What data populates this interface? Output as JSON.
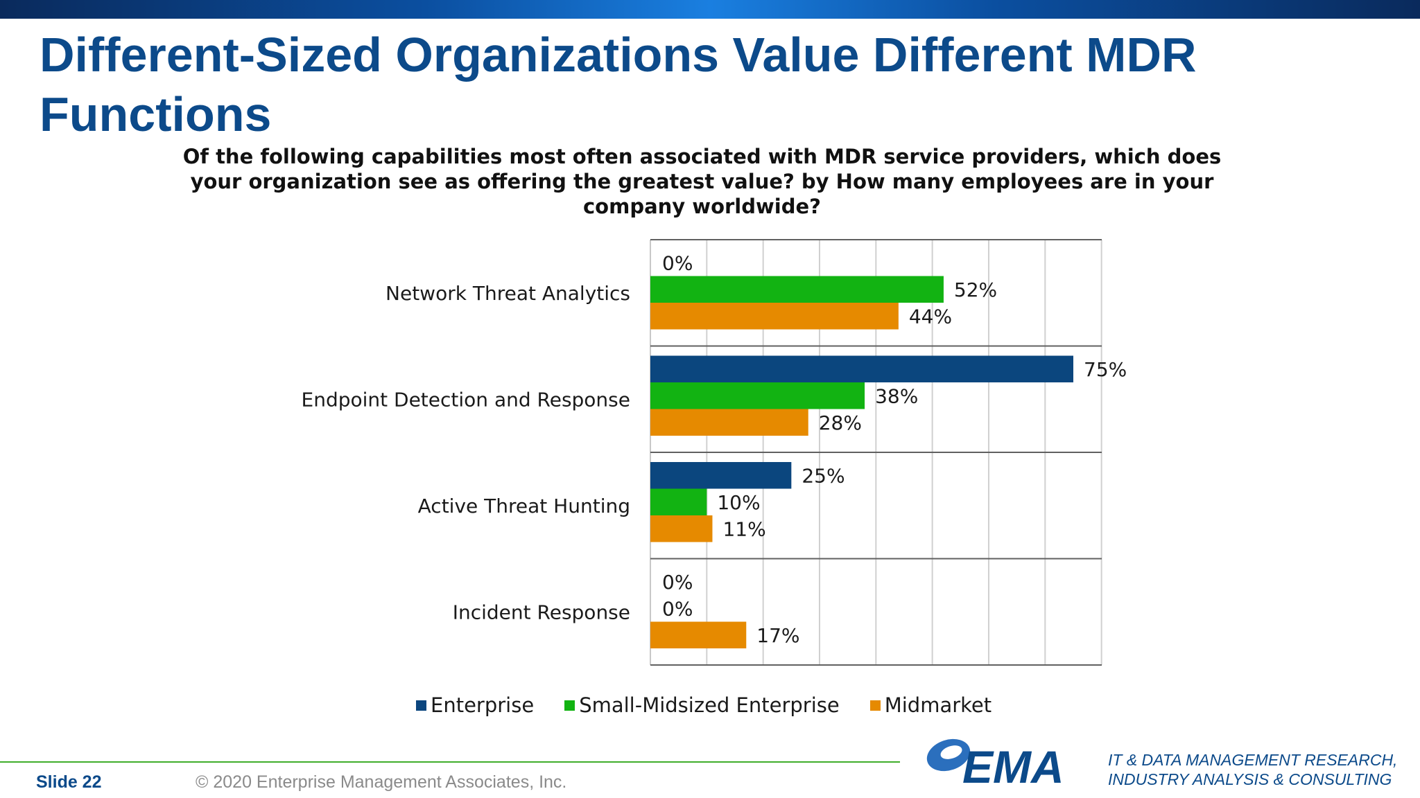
{
  "slide": {
    "title": "Different-Sized Organizations Value Different MDR Functions",
    "slide_number": "Slide  22",
    "copyright": "© 2020  Enterprise Management Associates, Inc.",
    "logo_text": "EMA",
    "tagline": [
      "IT & DATA MANAGEMENT RESEARCH,",
      "INDUSTRY ANALYSIS & CONSULTING"
    ],
    "accent_color": "#0c4a8a",
    "footer_line_color": "#3fae2a"
  },
  "chart_data": {
    "type": "bar",
    "orientation": "horizontal",
    "title": "Of the following capabilities most often associated with MDR service providers, which does your organization see as offering the greatest value? by How many employees are in your company worldwide?",
    "categories": [
      "Network Threat Analytics",
      "Endpoint Detection and Response",
      "Active Threat Hunting",
      "Incident Response"
    ],
    "series": [
      {
        "name": "Enterprise",
        "color": "#0b467e",
        "values": [
          0,
          75,
          25,
          0
        ]
      },
      {
        "name": "Small-Midsized Enterprise",
        "color": "#12b312",
        "values": [
          52,
          38,
          10,
          0
        ]
      },
      {
        "name": "Midmarket",
        "color": "#e68a00",
        "values": [
          44,
          28,
          11,
          17
        ]
      }
    ],
    "value_labels": [
      [
        "0%",
        "75%",
        "25%",
        "0%"
      ],
      [
        "52%",
        "38%",
        "10%",
        "0%"
      ],
      [
        "44%",
        "28%",
        "11%",
        "17%"
      ]
    ],
    "xlim": [
      0,
      80
    ],
    "grid": true,
    "legend_position": "bottom"
  }
}
